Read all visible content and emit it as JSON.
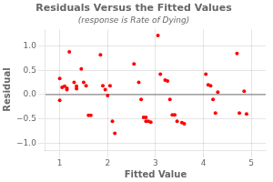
{
  "chart_data": {
    "type": "scatter",
    "title": "Residuals Versus the Fitted Values",
    "subtitle": "(response is Rate of Dying)",
    "xlabel": "Fitted Value",
    "ylabel": "Residual",
    "x": [
      1.0,
      1.0,
      1.05,
      1.1,
      1.15,
      1.15,
      1.2,
      1.3,
      1.35,
      1.35,
      1.45,
      1.5,
      1.55,
      1.6,
      1.65,
      1.85,
      1.9,
      1.95,
      2.0,
      2.05,
      2.1,
      2.15,
      2.55,
      2.65,
      2.7,
      2.75,
      2.8,
      2.8,
      2.85,
      2.9,
      3.05,
      3.1,
      3.2,
      3.25,
      3.3,
      3.35,
      3.4,
      3.45,
      3.55,
      3.6,
      4.05,
      4.1,
      4.15,
      4.2,
      4.25,
      4.3,
      4.7,
      4.75,
      4.85,
      4.9
    ],
    "values": [
      0.33,
      -0.12,
      0.15,
      0.17,
      0.1,
      0.13,
      0.88,
      0.25,
      0.17,
      0.12,
      0.53,
      0.25,
      0.18,
      -0.43,
      -0.43,
      0.82,
      0.18,
      0.1,
      -0.02,
      0.18,
      -0.55,
      -0.8,
      0.63,
      0.25,
      -0.1,
      -0.47,
      -0.47,
      -0.55,
      -0.55,
      -0.57,
      1.22,
      0.42,
      0.3,
      0.28,
      -0.1,
      -0.42,
      -0.42,
      -0.55,
      -0.58,
      -0.6,
      0.42,
      0.2,
      0.18,
      -0.1,
      -0.38,
      0.05,
      0.85,
      -0.38,
      0.07,
      -0.4
    ],
    "color": "#ff0000",
    "xlim": [
      0.7,
      5.3
    ],
    "ylim": [
      -1.15,
      1.35
    ],
    "xticks": [
      1,
      2,
      3,
      4,
      5
    ],
    "yticks": [
      {
        "value": -1.0,
        "label": "−1.0"
      },
      {
        "value": -0.5,
        "label": "−0.5"
      },
      {
        "value": 0.0,
        "label": "0.0"
      },
      {
        "value": 0.5,
        "label": "0.5"
      },
      {
        "value": 1.0,
        "label": "1.0"
      }
    ],
    "hline": 0.0,
    "grid": true
  }
}
